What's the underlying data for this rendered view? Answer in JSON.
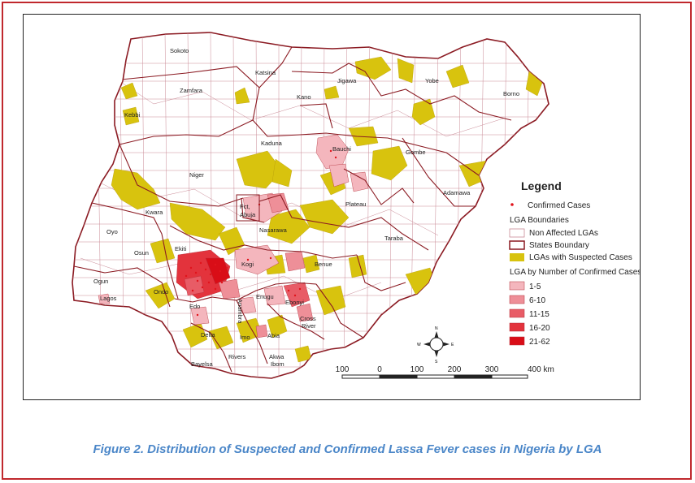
{
  "caption": "Figure 2. Distribution of Suspected and Confirmed Lassa Fever cases in Nigeria by LGA",
  "states": {
    "sokoto": "Sokoto",
    "katsina": "Katsina",
    "jigawa": "Jigawa",
    "yobe": "Yobe",
    "borno": "Borno",
    "zamfara": "Zamfara",
    "kano": "Kano",
    "kebbi": "Kebbi",
    "kaduna": "Kaduna",
    "bauchi": "Bauchi",
    "gombe": "Gombe",
    "niger": "Niger",
    "adamawa": "Adamawa",
    "plateau": "Plateau",
    "fct": "Fct,",
    "abuja": "Abuja",
    "kwara": "Kwara",
    "nasarawa": "Nasarawa",
    "taraba": "Taraba",
    "oyo": "Oyo",
    "ekiti": "Ekiti",
    "osun": "Osun",
    "kogi": "Kogi",
    "benue": "Benue",
    "ogun": "Ogun",
    "ondo": "Ondo",
    "lagos": "Lagos",
    "edo": "Edo",
    "enugu": "Enugu",
    "anambra": "Anambra",
    "ebonyi": "Ebonyi",
    "cross": "Cross",
    "river": "River",
    "delta": "Delta",
    "imo": "Imo",
    "abia": "Abia",
    "bayelsa": "Bayelsa",
    "rivers": "Rivers",
    "akwa": "Akwa",
    "ibom": "Ibom"
  },
  "legend": {
    "title": "Legend",
    "confirmed": "Confirmed Cases",
    "lga_heading": "LGA Boundaries",
    "non_affected": "Non Affected LGAs",
    "states_boundary": "States Boundary",
    "suspected": "LGAs with Suspected Cases",
    "by_number_heading": "LGA by Number of Confirmed Cases",
    "bins": [
      {
        "label": "1-5",
        "color": "#f4b6bd"
      },
      {
        "label": "6-10",
        "color": "#ee8f98"
      },
      {
        "label": "11-15",
        "color": "#e85c66"
      },
      {
        "label": "16-20",
        "color": "#e3333c"
      },
      {
        "label": "21-62",
        "color": "#d90d17"
      }
    ]
  },
  "colors": {
    "suspected": "#d8c30e",
    "state_boundary": "#8b1a22",
    "lga_line": "#c98a96",
    "confirmed_dot": "#e0141c",
    "frame": "#c0282d",
    "caption": "#4a86c8"
  },
  "scale": {
    "ticks": [
      "100",
      "0",
      "100",
      "200",
      "300",
      "400 km"
    ]
  },
  "north_arrow": {
    "n": "N",
    "s": "S",
    "e": "E",
    "w": "W"
  }
}
